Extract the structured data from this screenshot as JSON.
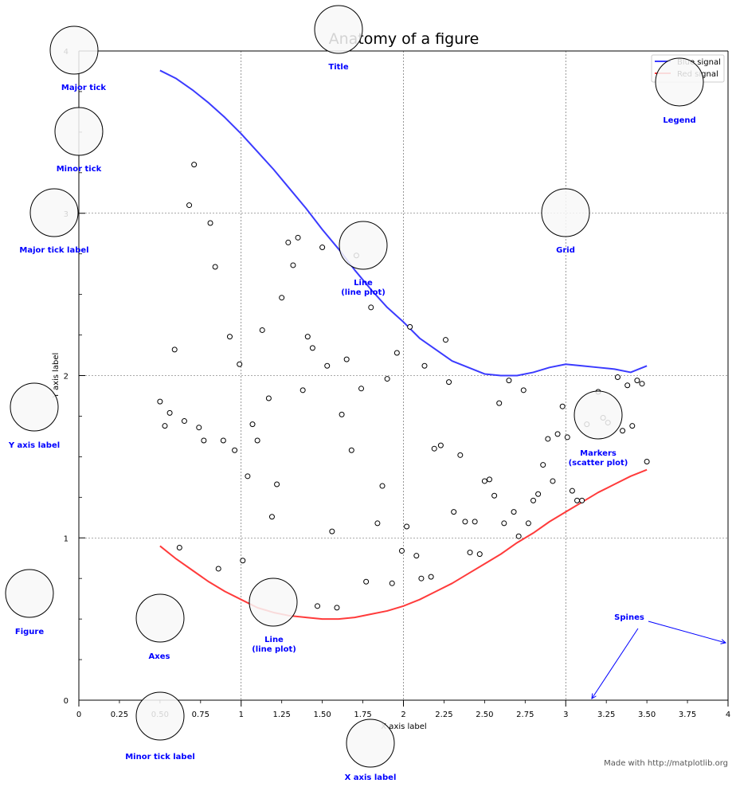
{
  "chart_data": {
    "type": "line",
    "title": "Anatomy of a figure",
    "xlabel": "X axis label",
    "ylabel": "Y axis label",
    "xlim": [
      0,
      4
    ],
    "ylim": [
      0,
      4
    ],
    "grid": true,
    "legend_position": "upper right",
    "major_ticks_x": [
      0,
      1,
      2,
      3,
      4
    ],
    "major_ticks_y": [
      0,
      1,
      2,
      3,
      4
    ],
    "minor_ticks_x": [
      0.25,
      0.5,
      0.75,
      1.25,
      1.5,
      1.75,
      2.25,
      2.5,
      2.75,
      3.25,
      3.5,
      3.75
    ],
    "minor_ticks_y": [
      0.25,
      0.5,
      0.75,
      1.25,
      1.5,
      1.75,
      2.25,
      2.5,
      2.75,
      3.25,
      3.5,
      3.75
    ],
    "y_tick_labels": [
      {
        "value": 0,
        "label": "0"
      },
      {
        "value": 1,
        "label": "1"
      },
      {
        "value": 2,
        "label": "2"
      },
      {
        "value": 3,
        "label": "3"
      },
      {
        "value": 4,
        "label": "4"
      }
    ],
    "x_tick_labels": [
      {
        "value": 0,
        "label": "0"
      },
      {
        "value": 0.25,
        "label": "0.25"
      },
      {
        "value": 0.5,
        "label": "0.50"
      },
      {
        "value": 0.75,
        "label": "0.75"
      },
      {
        "value": 1,
        "label": "1"
      },
      {
        "value": 1.25,
        "label": "1.25"
      },
      {
        "value": 1.5,
        "label": "1.50"
      },
      {
        "value": 1.75,
        "label": "1.75"
      },
      {
        "value": 2,
        "label": "2"
      },
      {
        "value": 2.25,
        "label": "2.25"
      },
      {
        "value": 2.5,
        "label": "2.50"
      },
      {
        "value": 2.75,
        "label": "2.75"
      },
      {
        "value": 3,
        "label": "3"
      },
      {
        "value": 3.25,
        "label": "3.25"
      },
      {
        "value": 3.5,
        "label": "3.50"
      },
      {
        "value": 3.75,
        "label": "3.75"
      },
      {
        "value": 4,
        "label": "4"
      }
    ],
    "series": [
      {
        "name": "Blue signal",
        "color": "#3b3bff",
        "x": [
          0.5,
          0.6,
          0.7,
          0.8,
          0.9,
          1.0,
          1.1,
          1.2,
          1.3,
          1.4,
          1.5,
          1.6,
          1.7,
          1.8,
          1.9,
          2.0,
          2.1,
          2.2,
          2.3,
          2.4,
          2.5,
          2.6,
          2.7,
          2.8,
          2.9,
          3.0,
          3.1,
          3.2,
          3.3,
          3.4,
          3.5
        ],
        "y": [
          3.88,
          3.83,
          3.76,
          3.68,
          3.59,
          3.49,
          3.38,
          3.27,
          3.15,
          3.03,
          2.9,
          2.78,
          2.65,
          2.53,
          2.42,
          2.33,
          2.23,
          2.16,
          2.09,
          2.05,
          2.01,
          2.0,
          2.0,
          2.02,
          2.05,
          2.07,
          2.06,
          2.05,
          2.04,
          2.02,
          2.06
        ]
      },
      {
        "name": "Red signal",
        "color": "#ff3b3b",
        "x": [
          0.5,
          0.6,
          0.7,
          0.8,
          0.9,
          1.0,
          1.1,
          1.2,
          1.3,
          1.4,
          1.5,
          1.6,
          1.7,
          1.8,
          1.9,
          2.0,
          2.1,
          2.2,
          2.3,
          2.4,
          2.5,
          2.6,
          2.7,
          2.8,
          2.9,
          3.0,
          3.1,
          3.2,
          3.3,
          3.4,
          3.5
        ],
        "y": [
          0.95,
          0.87,
          0.8,
          0.73,
          0.67,
          0.62,
          0.57,
          0.54,
          0.52,
          0.51,
          0.5,
          0.5,
          0.51,
          0.53,
          0.55,
          0.58,
          0.62,
          0.67,
          0.72,
          0.78,
          0.84,
          0.9,
          0.97,
          1.03,
          1.1,
          1.16,
          1.22,
          1.28,
          1.33,
          1.38,
          1.42
        ]
      }
    ],
    "scatter": {
      "name": "Markers (scatter plot)",
      "marker": "circle",
      "edge_color": "#000000",
      "face_color": "#ffffff",
      "points": [
        [
          0.71,
          3.3
        ],
        [
          0.68,
          3.05
        ],
        [
          0.81,
          2.94
        ],
        [
          0.84,
          2.67
        ],
        [
          0.59,
          2.16
        ],
        [
          0.93,
          2.24
        ],
        [
          0.99,
          2.07
        ],
        [
          0.5,
          1.84
        ],
        [
          0.56,
          1.77
        ],
        [
          0.53,
          1.69
        ],
        [
          0.65,
          1.72
        ],
        [
          0.74,
          1.68
        ],
        [
          0.77,
          1.6
        ],
        [
          0.89,
          1.6
        ],
        [
          0.96,
          1.54
        ],
        [
          1.04,
          1.38
        ],
        [
          1.07,
          1.7
        ],
        [
          1.1,
          1.6
        ],
        [
          1.17,
          1.86
        ],
        [
          1.13,
          2.28
        ],
        [
          1.22,
          1.33
        ],
        [
          1.19,
          1.13
        ],
        [
          1.25,
          2.48
        ],
        [
          1.29,
          2.82
        ],
        [
          1.35,
          2.85
        ],
        [
          1.32,
          2.68
        ],
        [
          1.41,
          2.24
        ],
        [
          1.44,
          2.17
        ],
        [
          1.38,
          1.91
        ],
        [
          1.5,
          2.79
        ],
        [
          1.53,
          2.06
        ],
        [
          1.62,
          1.76
        ],
        [
          1.65,
          2.1
        ],
        [
          1.68,
          1.54
        ],
        [
          1.71,
          2.74
        ],
        [
          1.74,
          1.92
        ],
        [
          1.8,
          2.42
        ],
        [
          1.87,
          1.32
        ],
        [
          1.9,
          1.98
        ],
        [
          1.96,
          2.14
        ],
        [
          2.04,
          2.3
        ],
        [
          2.13,
          2.06
        ],
        [
          2.26,
          2.22
        ],
        [
          2.28,
          1.96
        ],
        [
          2.19,
          1.55
        ],
        [
          2.23,
          1.57
        ],
        [
          2.35,
          1.51
        ],
        [
          2.31,
          1.16
        ],
        [
          2.38,
          1.1
        ],
        [
          2.44,
          1.1
        ],
        [
          2.5,
          1.35
        ],
        [
          2.53,
          1.36
        ],
        [
          2.56,
          1.26
        ],
        [
          2.59,
          1.83
        ],
        [
          2.62,
          1.09
        ],
        [
          2.65,
          1.97
        ],
        [
          2.68,
          1.16
        ],
        [
          2.71,
          1.01
        ],
        [
          2.74,
          1.91
        ],
        [
          2.77,
          1.09
        ],
        [
          2.8,
          1.23
        ],
        [
          2.83,
          1.27
        ],
        [
          2.86,
          1.45
        ],
        [
          2.89,
          1.61
        ],
        [
          2.92,
          1.35
        ],
        [
          2.95,
          1.64
        ],
        [
          2.98,
          1.81
        ],
        [
          3.01,
          1.62
        ],
        [
          3.04,
          1.29
        ],
        [
          3.07,
          1.23
        ],
        [
          3.1,
          1.23
        ],
        [
          3.13,
          1.7
        ],
        [
          3.2,
          1.9
        ],
        [
          3.23,
          1.74
        ],
        [
          3.26,
          1.71
        ],
        [
          3.32,
          1.99
        ],
        [
          3.35,
          1.66
        ],
        [
          3.38,
          1.94
        ],
        [
          3.41,
          1.69
        ],
        [
          3.44,
          1.97
        ],
        [
          3.47,
          1.95
        ],
        [
          3.5,
          1.47
        ],
        [
          0.62,
          0.94
        ],
        [
          0.86,
          0.81
        ],
        [
          1.01,
          0.86
        ],
        [
          1.47,
          0.58
        ],
        [
          1.56,
          1.04
        ],
        [
          1.59,
          0.57
        ],
        [
          1.77,
          0.73
        ],
        [
          1.84,
          1.09
        ],
        [
          1.93,
          0.72
        ],
        [
          1.99,
          0.92
        ],
        [
          2.02,
          1.07
        ],
        [
          2.08,
          0.89
        ],
        [
          2.11,
          0.75
        ],
        [
          2.17,
          0.76
        ],
        [
          2.41,
          0.91
        ],
        [
          2.47,
          0.9
        ]
      ]
    }
  },
  "annotations": [
    {
      "key": "title",
      "label": "Title"
    },
    {
      "key": "major-tick",
      "label": "Major tick"
    },
    {
      "key": "minor-tick",
      "label": "Minor tick"
    },
    {
      "key": "major-tick-label",
      "label": "Major tick label"
    },
    {
      "key": "grid",
      "label": "Grid"
    },
    {
      "key": "legend",
      "label": "Legend"
    },
    {
      "key": "line-plot-upper",
      "label": [
        "Line",
        "(line plot)"
      ]
    },
    {
      "key": "y-axis-label",
      "label": "Y axis label"
    },
    {
      "key": "markers",
      "label": [
        "Markers",
        "(scatter plot)"
      ]
    },
    {
      "key": "spines",
      "label": "Spines"
    },
    {
      "key": "figure",
      "label": "Figure"
    },
    {
      "key": "axes",
      "label": "Axes"
    },
    {
      "key": "line-plot-lower",
      "label": [
        "Line",
        "(line plot)"
      ]
    },
    {
      "key": "minor-tick-label",
      "label": "Minor tick label"
    },
    {
      "key": "x-axis-label",
      "label": "X axis label"
    }
  ],
  "colors": {
    "annotation_text": "#0000ff",
    "circle_fill": "#f8f8f8",
    "circle_edge": "#000000",
    "grid": "#555555"
  },
  "footer": {
    "credit": "Made with http://matplotlib.org"
  }
}
